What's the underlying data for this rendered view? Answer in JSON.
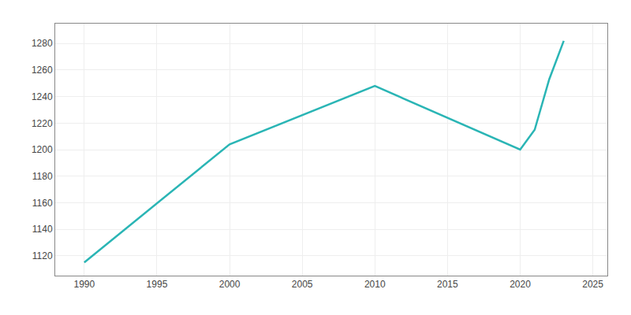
{
  "chart_data": {
    "type": "line",
    "x": [
      1990,
      2000,
      2010,
      2020,
      2021,
      2022,
      2023
    ],
    "values": [
      1115,
      1204,
      1248,
      1200,
      1215,
      1253,
      1282
    ],
    "color": "#2ab5b5",
    "xlim": [
      1988,
      2026
    ],
    "ylim": [
      1105,
      1295
    ],
    "xticks": [
      1990,
      1995,
      2000,
      2005,
      2010,
      2015,
      2020,
      2025
    ],
    "yticks": [
      1120,
      1140,
      1160,
      1180,
      1200,
      1220,
      1240,
      1260,
      1280
    ],
    "grid": true
  }
}
